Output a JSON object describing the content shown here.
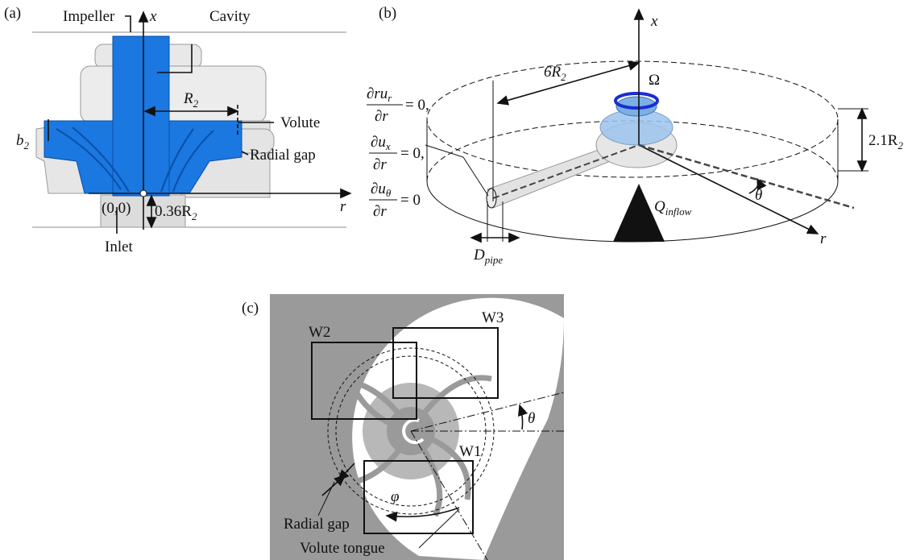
{
  "panel_a": {
    "label": "(a)",
    "impeller": "Impeller",
    "x_axis": "x",
    "cavity": "Cavity",
    "r2": {
      "base": "R",
      "sub": "2"
    },
    "volute": "Volute",
    "b2": {
      "base": "b",
      "sub": "2"
    },
    "radial_gap": "Radial gap",
    "origin": "(0,0)",
    "inlet_offset": {
      "base": "0.36R",
      "sub": "2"
    },
    "r_axis": "r",
    "inlet": "Inlet"
  },
  "panel_b": {
    "label": "(b)",
    "x_axis": "x",
    "radius": {
      "base": "6R",
      "sub": "2"
    },
    "omega": "Ω",
    "height": {
      "base": "2.1R",
      "sub": "2"
    },
    "theta": "θ",
    "inflow": {
      "base": "Q",
      "sub": "inflow"
    },
    "r_axis": "r",
    "pipe": {
      "base": "D",
      "sub": "pipe"
    },
    "conditions": [
      {
        "numerator": {
          "base": "∂ru",
          "sub": "r"
        },
        "denominator": "∂r",
        "rhs": "= 0,"
      },
      {
        "numerator": {
          "base": "∂u",
          "sub": "x"
        },
        "denominator": "∂r",
        "rhs": "= 0,"
      },
      {
        "numerator": {
          "base": "∂u",
          "sub": "θ"
        },
        "denominator": "∂r",
        "rhs": "= 0"
      }
    ]
  },
  "panel_c": {
    "label": "(c)",
    "windows": [
      "W2",
      "W3",
      "W1"
    ],
    "theta": "θ",
    "phi": "φ",
    "radial_gap": "Radial gap",
    "volute_tongue": "Volute tongue"
  }
}
